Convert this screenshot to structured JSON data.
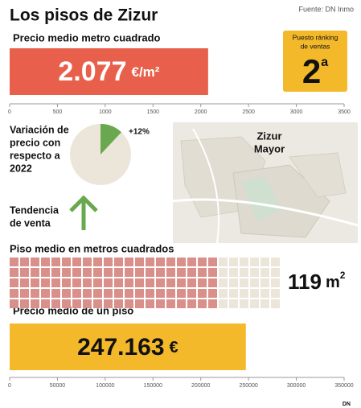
{
  "header": {
    "title": "Los pisos de Zizur",
    "source": "Fuente: DN Inmo"
  },
  "chart_data": [
    {
      "type": "bar",
      "title": "Precio medio metro cuadrado",
      "values": [
        2077
      ],
      "value_labels": [
        "2.077"
      ],
      "unit": "€/m²",
      "color": "#e8604c",
      "label_color": "#ffffff",
      "xlim": [
        0,
        3500
      ],
      "xticks": [
        0,
        500,
        1000,
        1500,
        2000,
        2500,
        3000,
        3500
      ]
    },
    {
      "type": "bar",
      "title": "Precio medio de un piso",
      "values": [
        247163
      ],
      "value_labels": [
        "247.163"
      ],
      "unit": "€",
      "color": "#f4b92a",
      "label_color": "#111111",
      "xlim": [
        0,
        350000
      ],
      "xticks": [
        0,
        50000,
        100000,
        150000,
        200000,
        250000,
        300000,
        350000
      ]
    }
  ],
  "ranking": {
    "label": [
      "Puesto ránking",
      "de ventas"
    ],
    "position": 2,
    "ordinal": "a"
  },
  "variation": {
    "label": [
      "Variación de",
      "precio con",
      "respecto a",
      "2022"
    ],
    "value": 12,
    "value_label": "+12%",
    "color": "#6aa84f"
  },
  "trend": {
    "label": [
      "Tendencia",
      "de venta"
    ]
  },
  "map": {
    "label": [
      "Zizur",
      "Mayor"
    ]
  },
  "area": {
    "title": "Piso medio en metros cuadrados",
    "value": 119,
    "unit": "m",
    "unit_exp": "2"
  },
  "logo": "DN"
}
